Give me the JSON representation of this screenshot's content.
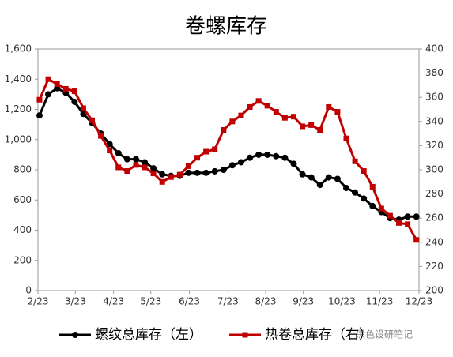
{
  "chart_data": {
    "type": "line",
    "title": "卷螺库存",
    "watermark": "黑色设研笔记",
    "x": [
      0,
      1,
      2,
      3,
      4,
      5,
      6,
      7,
      8,
      9,
      10,
      11,
      12,
      13,
      14,
      15,
      16,
      17,
      18,
      19,
      20,
      21,
      22,
      23,
      24,
      25,
      26,
      27,
      28,
      29,
      30,
      31,
      32,
      33,
      34,
      35,
      36,
      37,
      38,
      39,
      40,
      41,
      42,
      43
    ],
    "xlim": [
      -0.18,
      43.3
    ],
    "xticks": [
      {
        "value": -0.18,
        "label": "2/23"
      },
      {
        "value": 4.09,
        "label": "3/23"
      },
      {
        "value": 8.45,
        "label": "4/23"
      },
      {
        "value": 12.7,
        "label": "5/23"
      },
      {
        "value": 17.1,
        "label": "6/23"
      },
      {
        "value": 21.5,
        "label": "7/23"
      },
      {
        "value": 25.8,
        "label": "8/23"
      },
      {
        "value": 30.1,
        "label": "9/23"
      },
      {
        "value": 34.5,
        "label": "10/23"
      },
      {
        "value": 38.8,
        "label": "11/23"
      },
      {
        "value": 43.3,
        "label": "12/23"
      }
    ],
    "ylim": [
      0,
      1600
    ],
    "yticks": [
      0,
      200,
      400,
      600,
      800,
      {
        "value": 1000,
        "label": "1,000"
      },
      {
        "value": 1200,
        "label": "1,200"
      },
      {
        "value": 1400,
        "label": "1,400"
      },
      {
        "value": 1600,
        "label": "1,600"
      }
    ],
    "y2lim": [
      200,
      400
    ],
    "y2ticks": [
      200,
      220,
      240,
      260,
      280,
      300,
      320,
      340,
      360,
      380,
      400
    ],
    "grid": false,
    "series": [
      {
        "name": "螺纹总库存（左）",
        "color": "#000000",
        "marker": "circle",
        "values": [
          1160,
          1300,
          1340,
          1310,
          1250,
          1170,
          1110,
          1040,
          970,
          910,
          870,
          870,
          850,
          810,
          770,
          760,
          760,
          780,
          780,
          780,
          790,
          800,
          830,
          850,
          880,
          900,
          900,
          890,
          880,
          840,
          770,
          750,
          700,
          750,
          740,
          680,
          650,
          610,
          560,
          520,
          480,
          470,
          490,
          490
        ]
      },
      {
        "name": "热卷总库存（右）",
        "color": "#c00000",
        "marker": "square",
        "axis": "y2",
        "values": [
          358,
          375,
          371,
          367,
          365,
          351,
          341,
          328,
          316,
          302,
          299,
          304,
          302,
          297,
          290,
          294,
          296,
          303,
          310,
          315,
          317,
          333,
          340,
          345,
          352,
          357,
          353,
          348,
          343,
          344,
          336,
          337,
          333,
          352,
          348,
          326,
          307,
          299,
          286,
          268,
          262,
          256,
          255,
          242
        ]
      }
    ]
  }
}
